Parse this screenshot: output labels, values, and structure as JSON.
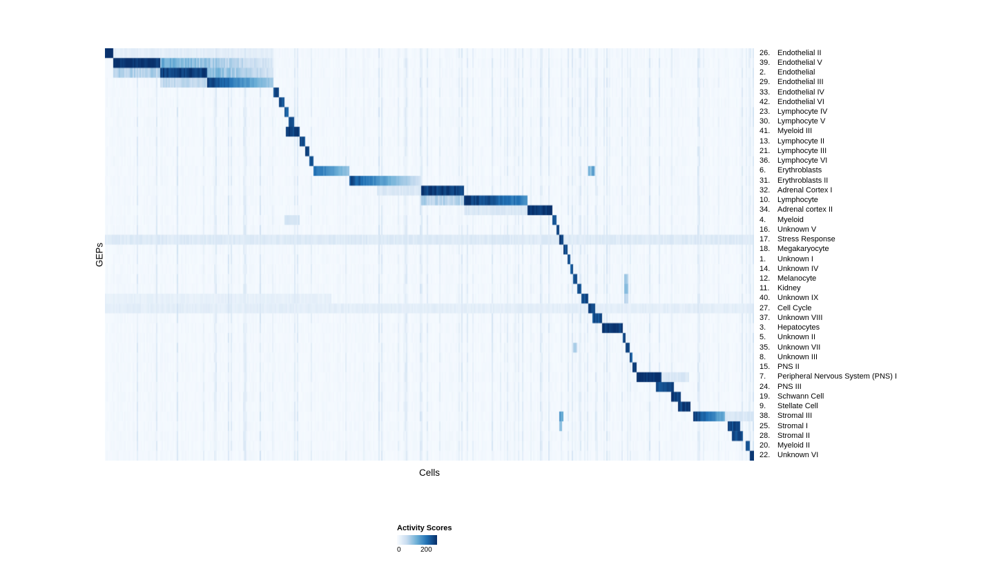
{
  "chart_data": {
    "type": "heatmap",
    "xlabel": "Cells",
    "ylabel": "GEPs",
    "colorbar": {
      "title": "Activity Scores",
      "ticks": [
        "0",
        "200"
      ],
      "value_range": [
        0,
        250
      ],
      "colormap": [
        "#f7fbff",
        "#c6dbef",
        "#6baed6",
        "#2171b5",
        "#08306b"
      ]
    },
    "description": "GEP activity scores per cell; cells ordered so each GEP's high-activity block forms a diagonal. Feature spans s/e are fractions of the cells axis; v is activity normalized to colormap max.",
    "rows": [
      {
        "num": "26.",
        "name": "Endothelial II",
        "features": [
          {
            "s": 0.0,
            "e": 0.013,
            "v": 1.0
          },
          {
            "s": 0.013,
            "e": 0.26,
            "v": 0.1
          }
        ]
      },
      {
        "num": "39.",
        "name": "Endothelial V",
        "features": [
          {
            "s": 0.013,
            "e": 0.085,
            "v": 1.0
          },
          {
            "s": 0.085,
            "e": 0.26,
            "v": 0.5,
            "fadeTo": 0.3
          }
        ]
      },
      {
        "num": "2.",
        "name": "Endothelial",
        "features": [
          {
            "s": 0.013,
            "e": 0.085,
            "v": 0.3
          },
          {
            "s": 0.085,
            "e": 0.158,
            "v": 0.95
          },
          {
            "s": 0.158,
            "e": 0.26,
            "v": 0.45,
            "fadeTo": 0.4
          }
        ]
      },
      {
        "num": "29.",
        "name": "Endothelial III",
        "features": [
          {
            "s": 0.085,
            "e": 0.158,
            "v": 0.25
          },
          {
            "s": 0.158,
            "e": 0.26,
            "v": 0.95,
            "fadeTo": 0.35
          }
        ]
      },
      {
        "num": "33.",
        "name": "Endothelial IV",
        "features": [
          {
            "s": 0.26,
            "e": 0.268,
            "v": 0.9
          }
        ]
      },
      {
        "num": "42.",
        "name": "Endothelial VI",
        "features": [
          {
            "s": 0.268,
            "e": 0.276,
            "v": 0.9
          }
        ]
      },
      {
        "num": "23.",
        "name": "Lymphocyte IV",
        "features": [
          {
            "s": 0.276,
            "e": 0.283,
            "v": 0.85
          }
        ]
      },
      {
        "num": "30.",
        "name": "Lymphocyte V",
        "features": [
          {
            "s": 0.283,
            "e": 0.291,
            "v": 0.9
          }
        ]
      },
      {
        "num": "41.",
        "name": "Myeloid III",
        "features": [
          {
            "s": 0.278,
            "e": 0.301,
            "v": 0.95
          }
        ]
      },
      {
        "num": "13.",
        "name": "Lymphocyte II",
        "features": [
          {
            "s": 0.301,
            "e": 0.308,
            "v": 0.9
          }
        ]
      },
      {
        "num": "21.",
        "name": "Lymphocyte III",
        "features": [
          {
            "s": 0.308,
            "e": 0.315,
            "v": 0.9
          }
        ]
      },
      {
        "num": "36.",
        "name": "Lymphocyte VI",
        "features": [
          {
            "s": 0.315,
            "e": 0.321,
            "v": 0.85
          }
        ]
      },
      {
        "num": "6.",
        "name": "Erythroblasts",
        "features": [
          {
            "s": 0.321,
            "e": 0.376,
            "v": 0.8,
            "fadeTo": 0.45
          },
          {
            "s": 0.745,
            "e": 0.755,
            "v": 0.5
          }
        ]
      },
      {
        "num": "31.",
        "name": "Erythroblasts II",
        "features": [
          {
            "s": 0.376,
            "e": 0.487,
            "v": 0.9,
            "fadeTo": 0.2
          }
        ]
      },
      {
        "num": "32.",
        "name": "Adrenal Cortex I",
        "features": [
          {
            "s": 0.42,
            "e": 0.487,
            "v": 0.15
          },
          {
            "s": 0.487,
            "e": 0.553,
            "v": 0.95
          }
        ]
      },
      {
        "num": "10.",
        "name": "Lymphocyte",
        "features": [
          {
            "s": 0.487,
            "e": 0.553,
            "v": 0.3
          },
          {
            "s": 0.553,
            "e": 0.652,
            "v": 1.0,
            "fadeTo": 0.65
          }
        ]
      },
      {
        "num": "34.",
        "name": "Adrenal cortex II",
        "features": [
          {
            "s": 0.553,
            "e": 0.652,
            "v": 0.15
          },
          {
            "s": 0.652,
            "e": 0.69,
            "v": 1.0
          }
        ]
      },
      {
        "num": "4.",
        "name": "Myeloid",
        "features": [
          {
            "s": 0.276,
            "e": 0.301,
            "v": 0.18
          },
          {
            "s": 0.69,
            "e": 0.696,
            "v": 0.9
          }
        ]
      },
      {
        "num": "16.",
        "name": "Unknown V",
        "features": [
          {
            "s": 0.696,
            "e": 0.701,
            "v": 0.9
          }
        ]
      },
      {
        "num": "17.",
        "name": "Stress Response",
        "features": [
          {
            "s": 0.0,
            "e": 1.0,
            "v": 0.13
          },
          {
            "s": 0.701,
            "e": 0.707,
            "v": 0.95
          }
        ]
      },
      {
        "num": "18.",
        "name": "Megakaryocyte",
        "features": [
          {
            "s": 0.707,
            "e": 0.712,
            "v": 0.9
          }
        ]
      },
      {
        "num": "1.",
        "name": "Unknown I",
        "features": [
          {
            "s": 0.712,
            "e": 0.717,
            "v": 0.85
          }
        ]
      },
      {
        "num": "14.",
        "name": "Unknown IV",
        "features": [
          {
            "s": 0.717,
            "e": 0.722,
            "v": 0.85
          }
        ]
      },
      {
        "num": "12.",
        "name": "Melanocyte",
        "features": [
          {
            "s": 0.722,
            "e": 0.728,
            "v": 0.9
          },
          {
            "s": 0.8,
            "e": 0.806,
            "v": 0.3
          }
        ]
      },
      {
        "num": "11.",
        "name": "Kidney",
        "features": [
          {
            "s": 0.728,
            "e": 0.734,
            "v": 0.9
          },
          {
            "s": 0.8,
            "e": 0.806,
            "v": 0.4
          }
        ]
      },
      {
        "num": "40.",
        "name": "Unknown IX",
        "features": [
          {
            "s": 0.0,
            "e": 0.35,
            "v": 0.08
          },
          {
            "s": 0.734,
            "e": 0.744,
            "v": 0.9
          },
          {
            "s": 0.8,
            "e": 0.806,
            "v": 0.3
          }
        ]
      },
      {
        "num": "27.",
        "name": "Cell Cycle",
        "features": [
          {
            "s": 0.0,
            "e": 1.0,
            "v": 0.1
          },
          {
            "s": 0.744,
            "e": 0.756,
            "v": 0.9
          }
        ]
      },
      {
        "num": "37.",
        "name": "Unknown VIII",
        "features": [
          {
            "s": 0.752,
            "e": 0.766,
            "v": 0.9
          }
        ]
      },
      {
        "num": "3.",
        "name": "Hepatocytes",
        "features": [
          {
            "s": 0.766,
            "e": 0.797,
            "v": 0.95
          }
        ]
      },
      {
        "num": "5.",
        "name": "Unknown II",
        "features": [
          {
            "s": 0.797,
            "e": 0.802,
            "v": 0.9
          }
        ]
      },
      {
        "num": "35.",
        "name": "Unknown VII",
        "features": [
          {
            "s": 0.722,
            "e": 0.728,
            "v": 0.3
          },
          {
            "s": 0.802,
            "e": 0.808,
            "v": 0.9
          }
        ]
      },
      {
        "num": "8.",
        "name": "Unknown III",
        "features": [
          {
            "s": 0.808,
            "e": 0.813,
            "v": 0.85
          }
        ]
      },
      {
        "num": "15.",
        "name": "PNS II",
        "features": [
          {
            "s": 0.813,
            "e": 0.819,
            "v": 0.9
          }
        ]
      },
      {
        "num": "7.",
        "name": "Peripheral Nervous System (PNS) I",
        "features": [
          {
            "s": 0.819,
            "e": 0.858,
            "v": 1.0
          },
          {
            "s": 0.858,
            "e": 0.9,
            "v": 0.15
          }
        ]
      },
      {
        "num": "24.",
        "name": "PNS III",
        "features": [
          {
            "s": 0.85,
            "e": 0.877,
            "v": 0.9
          }
        ]
      },
      {
        "num": "19.",
        "name": "Schwann Cell",
        "features": [
          {
            "s": 0.872,
            "e": 0.887,
            "v": 0.95
          }
        ]
      },
      {
        "num": "9.",
        "name": "Stellate Cell",
        "features": [
          {
            "s": 0.882,
            "e": 0.903,
            "v": 0.95
          }
        ]
      },
      {
        "num": "38.",
        "name": "Stromal III",
        "features": [
          {
            "s": 0.7,
            "e": 0.706,
            "v": 0.5
          },
          {
            "s": 0.907,
            "e": 0.956,
            "v": 0.95,
            "fadeTo": 0.5
          },
          {
            "s": 0.956,
            "e": 1.0,
            "v": 0.15
          }
        ]
      },
      {
        "num": "25.",
        "name": "Stromal I",
        "features": [
          {
            "s": 0.7,
            "e": 0.705,
            "v": 0.35
          },
          {
            "s": 0.96,
            "e": 0.978,
            "v": 0.9
          }
        ]
      },
      {
        "num": "28.",
        "name": "Stromal II",
        "features": [
          {
            "s": 0.966,
            "e": 0.984,
            "v": 0.9
          }
        ]
      },
      {
        "num": "20.",
        "name": "Myeloid II",
        "features": [
          {
            "s": 0.987,
            "e": 0.993,
            "v": 0.9
          }
        ]
      },
      {
        "num": "22.",
        "name": "Unknown VI",
        "features": [
          {
            "s": 0.993,
            "e": 1.0,
            "v": 0.95
          }
        ]
      }
    ]
  }
}
